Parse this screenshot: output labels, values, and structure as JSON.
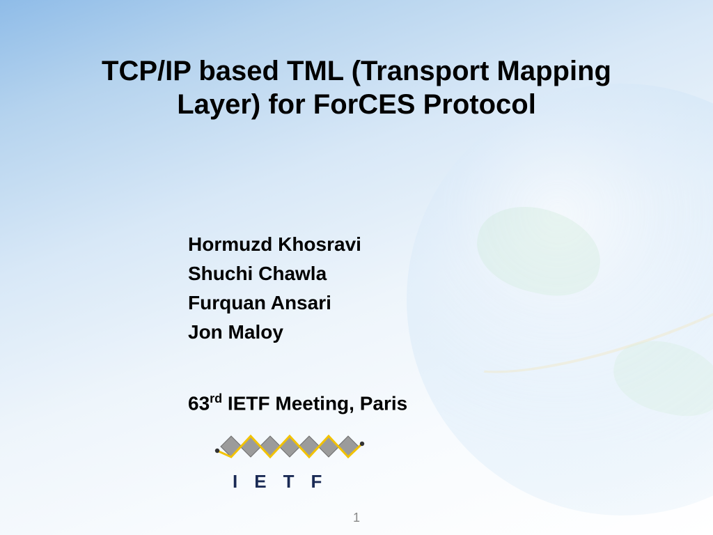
{
  "title": "TCP/IP based TML (Transport Mapping Layer) for ForCES Protocol",
  "authors": [
    "Hormuzd Khosravi",
    "Shuchi Chawla",
    "Furquan Ansari",
    "Jon Maloy"
  ],
  "meeting": {
    "num": "63",
    "ord": "rd",
    "rest": " IETF Meeting, Paris"
  },
  "logo": {
    "text": "IETF",
    "diamond_fill": "#9b9b9b",
    "diamond_stroke": "#6e6e6e",
    "line_color": "#f2c200",
    "dot_color": "#333333",
    "text_color": "#1a2a55"
  },
  "page_number": "1",
  "colors": {
    "title": "#000000",
    "body": "#000000",
    "pagenum": "#888888"
  }
}
